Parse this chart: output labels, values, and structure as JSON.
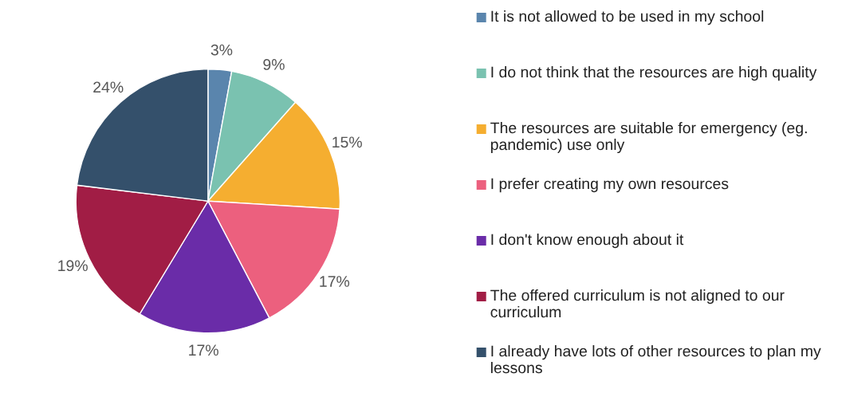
{
  "chart_data": {
    "type": "pie",
    "categories": [
      "It is not allowed to be used in my school",
      "I do not think that the resources are high quality",
      "The resources are suitable for emergency (eg. pandemic) use only",
      "I prefer creating my own resources",
      "I don't know enough about it",
      "The offered curriculum is not aligned to our curriculum",
      "I already have lots of other resources to plan my lessons"
    ],
    "values": [
      3,
      9,
      15,
      17,
      17,
      19,
      24
    ],
    "colors": [
      "#5a85ad",
      "#7ac2b0",
      "#f5ae30",
      "#ec607e",
      "#6a2ca8",
      "#a11d45",
      "#34506b"
    ],
    "value_labels": [
      "3%",
      "9%",
      "15%",
      "17%",
      "17%",
      "19%",
      "24%"
    ],
    "legend": "right"
  }
}
